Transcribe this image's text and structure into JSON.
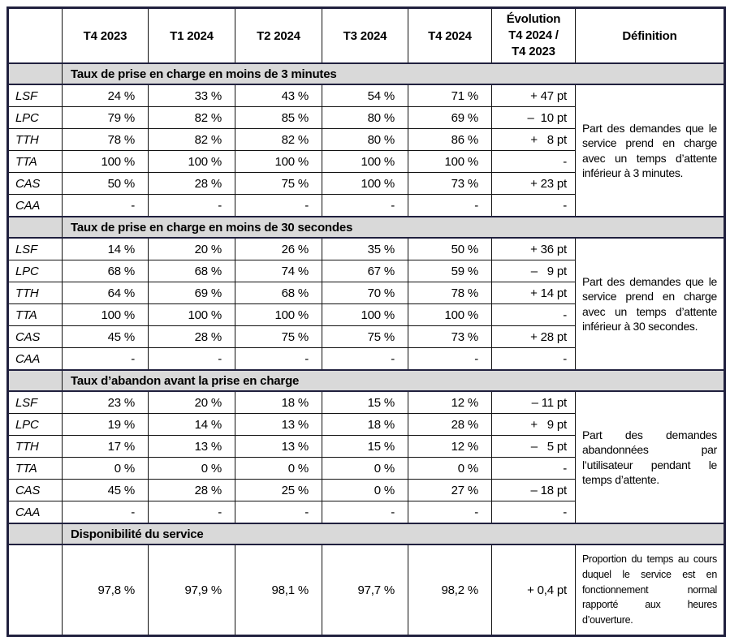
{
  "table": {
    "column_headers": [
      "T4 2023",
      "T1 2024",
      "T2 2024",
      "T3 2024",
      "T4 2024"
    ],
    "evolution_header": "Évolution\nT4 2024 /\nT4 2023",
    "definition_header": "Définition",
    "sections": [
      {
        "title": "Taux de prise en charge en moins de 3 minutes",
        "definition": "Part des demandes que le service prend en charge avec un temps d’attente inférieur à 3 minutes.",
        "rows": [
          {
            "label": "LSF",
            "values": [
              "24 %",
              "33 %",
              "43 %",
              "54 %",
              "71 %"
            ],
            "evolution": "+ 47 pt"
          },
          {
            "label": "LPC",
            "values": [
              "79 %",
              "82 %",
              "85 %",
              "80 %",
              "69 %"
            ],
            "evolution": "–  10 pt"
          },
          {
            "label": "TTH",
            "values": [
              "78 %",
              "82 %",
              "82 %",
              "80 %",
              "86 %"
            ],
            "evolution": "+   8 pt"
          },
          {
            "label": "TTA",
            "values": [
              "100 %",
              "100 %",
              "100 %",
              "100 %",
              "100 %"
            ],
            "evolution": "-"
          },
          {
            "label": "CAS",
            "values": [
              "50 %",
              "28 %",
              "75 %",
              "100 %",
              "73 %"
            ],
            "evolution": "+ 23 pt"
          },
          {
            "label": "CAA",
            "values": [
              "-",
              "-",
              "-",
              "-",
              "-"
            ],
            "evolution": "-"
          }
        ]
      },
      {
        "title": "Taux de prise en charge en moins de 30 secondes",
        "definition": "Part des demandes que le service prend en charge avec un temps d’attente inférieur à 30 secondes.",
        "rows": [
          {
            "label": "LSF",
            "values": [
              "14 %",
              "20 %",
              "26 %",
              "35 %",
              "50 %"
            ],
            "evolution": "+ 36 pt"
          },
          {
            "label": "LPC",
            "values": [
              "68 %",
              "68 %",
              "74 %",
              "67 %",
              "59 %"
            ],
            "evolution": "–   9 pt"
          },
          {
            "label": "TTH",
            "values": [
              "64 %",
              "69 %",
              "68 %",
              "70 %",
              "78 %"
            ],
            "evolution": "+ 14 pt"
          },
          {
            "label": "TTA",
            "values": [
              "100 %",
              "100 %",
              "100 %",
              "100 %",
              "100 %"
            ],
            "evolution": "-"
          },
          {
            "label": "CAS",
            "values": [
              "45 %",
              "28 %",
              "75 %",
              "75 %",
              "73 %"
            ],
            "evolution": "+ 28 pt"
          },
          {
            "label": "CAA",
            "values": [
              "-",
              "-",
              "-",
              "-",
              "-"
            ],
            "evolution": "-"
          }
        ]
      },
      {
        "title": "Taux d’abandon avant la prise en charge",
        "definition": "Part des demandes abandonnées par l’utilisateur pendant le temps d’attente.",
        "rows": [
          {
            "label": "LSF",
            "values": [
              "23 %",
              "20 %",
              "18 %",
              "15 %",
              "12 %"
            ],
            "evolution": "– 11 pt"
          },
          {
            "label": "LPC",
            "values": [
              "19 %",
              "14 %",
              "13 %",
              "18 %",
              "28 %"
            ],
            "evolution": "+   9 pt"
          },
          {
            "label": "TTH",
            "values": [
              "17 %",
              "13 %",
              "13 %",
              "15 %",
              "12 %"
            ],
            "evolution": "–   5 pt"
          },
          {
            "label": "TTA",
            "values": [
              "0 %",
              "0 %",
              "0 %",
              "0 %",
              "0 %"
            ],
            "evolution": "-"
          },
          {
            "label": "CAS",
            "values": [
              "45 %",
              "28 %",
              "25 %",
              "0 %",
              "27 %"
            ],
            "evolution": "– 18 pt"
          },
          {
            "label": "CAA",
            "values": [
              "-",
              "-",
              "-",
              "-",
              "-"
            ],
            "evolution": "-"
          }
        ]
      }
    ],
    "availability": {
      "title": "Disponibilité du service",
      "values": [
        "97,8 %",
        "97,9 %",
        "98,1 %",
        "97,7 %",
        "98,2 %"
      ],
      "evolution": "+ 0,4 pt",
      "definition": "Proportion du temps au cours duquel le service est en fonctionnement normal rapporté aux heures d’ouverture."
    },
    "colors": {
      "section_background": "#d9d9d9",
      "frame_border": "#20203e"
    }
  }
}
